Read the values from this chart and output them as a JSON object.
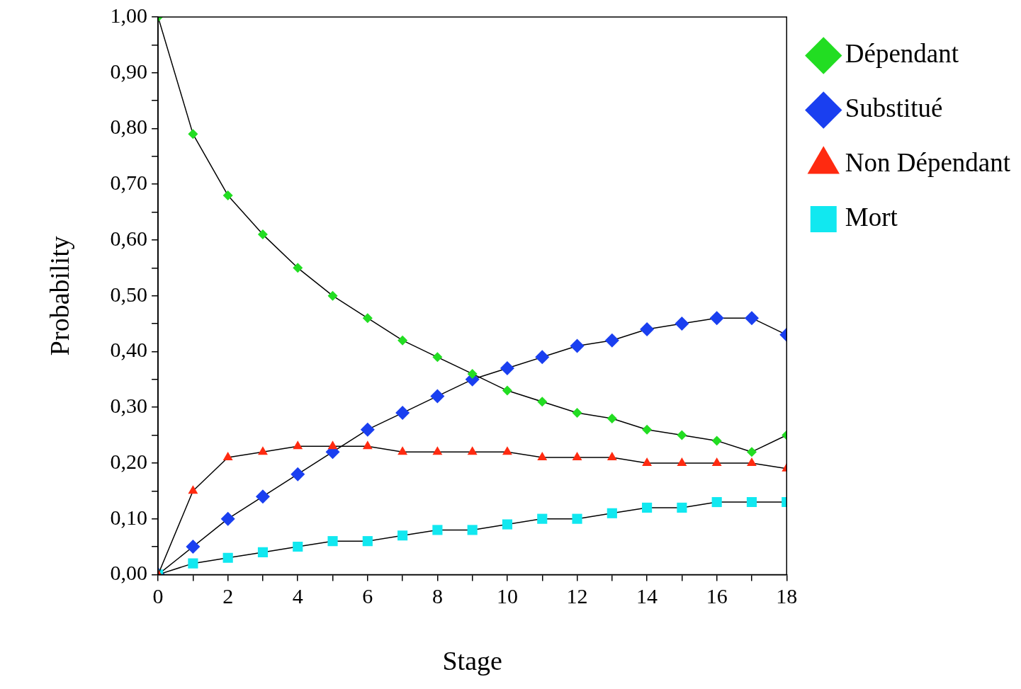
{
  "chart_data": {
    "type": "line",
    "xlabel": "Stage",
    "ylabel": "Probability",
    "x": [
      0,
      1,
      2,
      3,
      4,
      5,
      6,
      7,
      8,
      9,
      10,
      11,
      12,
      13,
      14,
      15,
      16,
      17,
      18
    ],
    "xlim": [
      0,
      18
    ],
    "xticks": [
      0,
      {
        "value": 1,
        "label": null
      },
      2,
      {
        "value": 3,
        "label": null
      },
      4,
      {
        "value": 5,
        "label": null
      },
      6,
      {
        "value": 7,
        "label": null
      },
      8,
      {
        "value": 9,
        "label": null
      },
      10,
      {
        "value": 11,
        "label": null
      },
      12,
      {
        "value": 13,
        "label": null
      },
      14,
      {
        "value": 15,
        "label": null
      },
      16,
      {
        "value": 17,
        "label": null
      },
      18
    ],
    "ylim": [
      0,
      1
    ],
    "yticks": [
      {
        "value": 0,
        "label": "0,00"
      },
      {
        "value": 0.05,
        "label": null
      },
      {
        "value": 0.1,
        "label": "0,10"
      },
      {
        "value": 0.15,
        "label": null
      },
      {
        "value": 0.2,
        "label": "0,20"
      },
      {
        "value": 0.25,
        "label": null
      },
      {
        "value": 0.3,
        "label": "0,30"
      },
      {
        "value": 0.35,
        "label": null
      },
      {
        "value": 0.4,
        "label": "0,40"
      },
      {
        "value": 0.45,
        "label": null
      },
      {
        "value": 0.5,
        "label": "0,50"
      },
      {
        "value": 0.55,
        "label": null
      },
      {
        "value": 0.6,
        "label": "0,60"
      },
      {
        "value": 0.65,
        "label": null
      },
      {
        "value": 0.7,
        "label": "0,70"
      },
      {
        "value": 0.75,
        "label": null
      },
      {
        "value": 0.8,
        "label": "0,80"
      },
      {
        "value": 0.85,
        "label": null
      },
      {
        "value": 0.9,
        "label": "0,90"
      },
      {
        "value": 0.95,
        "label": null
      },
      {
        "value": 1,
        "label": "1,00"
      }
    ],
    "grid": false,
    "legend": "top right",
    "line_style": "solid",
    "series": [
      {
        "name": "Dépendant",
        "color": "#22dd22",
        "marker": "diamond",
        "values": [
          1.0,
          0.79,
          0.68,
          0.61,
          0.55,
          0.5,
          0.46,
          0.42,
          0.39,
          0.36,
          0.33,
          0.31,
          0.29,
          0.28,
          0.26,
          0.25,
          0.24,
          0.22,
          0.25
        ]
      },
      {
        "name": "Substitué",
        "color": "#1a3ff0",
        "marker": "diamond",
        "values": [
          0,
          0.05,
          0.1,
          0.14,
          0.18,
          0.22,
          0.26,
          0.29,
          0.32,
          0.35,
          0.37,
          0.39,
          0.41,
          0.42,
          0.44,
          0.45,
          0.46,
          0.46,
          0.43
        ]
      },
      {
        "name": "Non Dépendant",
        "color": "#ff2a10",
        "marker": "triangle",
        "values": [
          0,
          0.15,
          0.21,
          0.22,
          0.23,
          0.23,
          0.23,
          0.22,
          0.22,
          0.22,
          0.22,
          0.21,
          0.21,
          0.21,
          0.2,
          0.2,
          0.2,
          0.2,
          0.19
        ]
      },
      {
        "name": "Mort",
        "color": "#11e8f0",
        "marker": "square",
        "values": [
          0,
          0.02,
          0.03,
          0.04,
          0.05,
          0.06,
          0.06,
          0.07,
          0.08,
          0.08,
          0.09,
          0.1,
          0.1,
          0.11,
          0.12,
          0.12,
          0.13,
          0.13,
          0.13
        ]
      }
    ]
  }
}
